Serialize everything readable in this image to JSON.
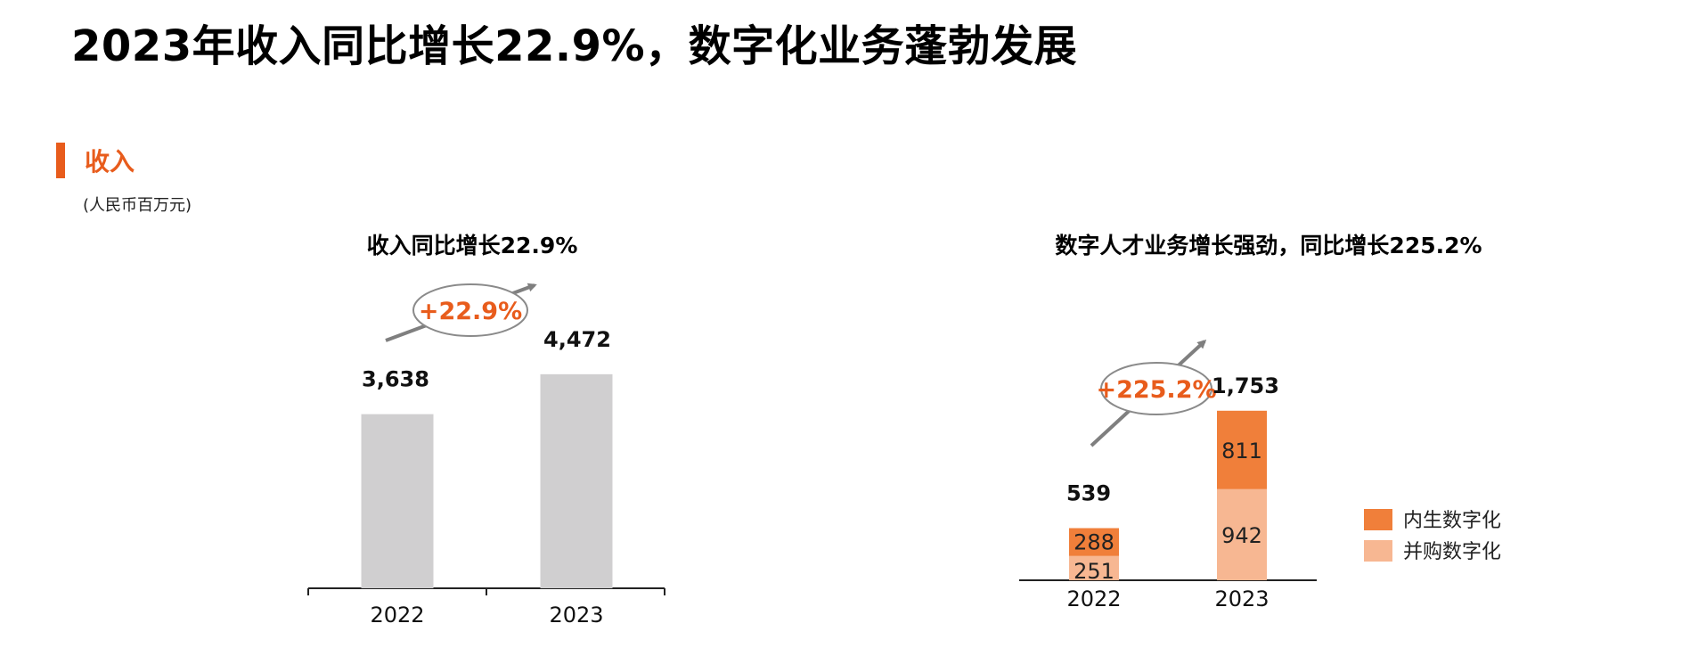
{
  "page_title": "2023年收入同比增长22.9%，数字化业务蓬勃发展",
  "section": {
    "title": "收入",
    "unit": "(人民币百万元)"
  },
  "colors": {
    "accent": "#e85c1c",
    "bar_gray": "#d0cfd0",
    "organic": "#f07f3a",
    "acquired": "#f7b792"
  },
  "chart_data": [
    {
      "type": "bar",
      "title": "收入同比增长22.9%",
      "categories": [
        "2022",
        "2023"
      ],
      "values": [
        3638,
        4472
      ],
      "value_labels": [
        "3,638",
        "4,472"
      ],
      "growth_label": "+22.9%",
      "xlabel": "",
      "ylabel": ""
    },
    {
      "type": "bar",
      "stacked": true,
      "title": "数字人才业务增长强劲，同比增长225.2%",
      "categories": [
        "2022",
        "2023"
      ],
      "series": [
        {
          "name": "并购数字化",
          "values": [
            251,
            942
          ],
          "value_labels": [
            "251",
            "942"
          ]
        },
        {
          "name": "内生数字化",
          "values": [
            288,
            811
          ],
          "value_labels": [
            "288",
            "811"
          ]
        }
      ],
      "totals": [
        539,
        1753
      ],
      "total_labels": [
        "539",
        "1,753"
      ],
      "growth_label": "+225.2%",
      "legend": "right"
    }
  ]
}
